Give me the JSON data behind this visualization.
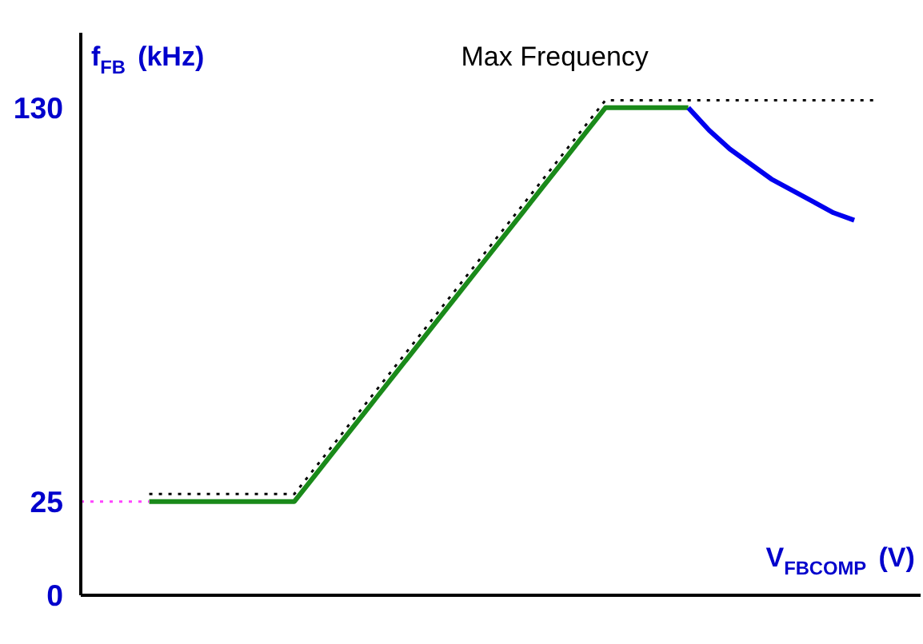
{
  "chart_data": {
    "type": "line",
    "xlabel": "V$_{FBCOMP}$ (V)",
    "ylabel": "f$_{FB}$ (kHz)",
    "categories": [
      null,
      null,
      null,
      null,
      null,
      null,
      null,
      null,
      null,
      null,
      null,
      null,
      null,
      null,
      null,
      null,
      null,
      null,
      null,
      null,
      null,
      null,
      null,
      null,
      null,
      null,
      null,
      null,
      null,
      null,
      null,
      null,
      null,
      null,
      null,
      null,
      null,
      null,
      null,
      null,
      null
    ],
    "series": [
      {
        "color": "#1a8a1a",
        "line_style": "solid",
        "values": [
          null,
          null,
          null,
          25,
          25,
          25,
          25,
          25,
          25,
          25,
          25,
          32,
          39,
          46,
          53,
          60,
          67,
          74,
          81,
          88,
          95,
          102,
          109,
          116,
          123,
          130,
          130,
          130,
          130,
          130,
          null,
          null,
          null,
          null,
          null,
          null,
          null,
          null,
          null,
          null,
          null
        ]
      },
      {
        "color": "#0000ee",
        "line_style": "solid",
        "values": [
          null,
          null,
          null,
          null,
          null,
          null,
          null,
          null,
          null,
          null,
          null,
          null,
          null,
          null,
          null,
          null,
          null,
          null,
          null,
          null,
          null,
          null,
          null,
          null,
          null,
          null,
          null,
          null,
          null,
          130,
          124,
          119,
          115,
          111,
          108,
          105,
          102,
          100,
          null,
          null,
          null
        ]
      },
      {
        "color": "#000000",
        "line_style": "dotted",
        "values": [
          null,
          null,
          null,
          27,
          27,
          27,
          27,
          27,
          27,
          27,
          27,
          34,
          41,
          48,
          55,
          62,
          69,
          76,
          83,
          90,
          97,
          104,
          111,
          118,
          125,
          132,
          132,
          132,
          132,
          132,
          132,
          132,
          132,
          132,
          132,
          132,
          132,
          132,
          132,
          null,
          null
        ]
      }
    ],
    "ylim": [
      0,
      150
    ],
    "yticks": [
      0,
      25,
      130
    ],
    "tick_labels": "y",
    "grid": false,
    "marker": "none",
    "ref_lines": [
      {
        "axis": "y",
        "value": 25,
        "color": "#ff44ff",
        "line_style": "dotted"
      }
    ],
    "annotations": [
      "Max Frequency"
    ]
  }
}
